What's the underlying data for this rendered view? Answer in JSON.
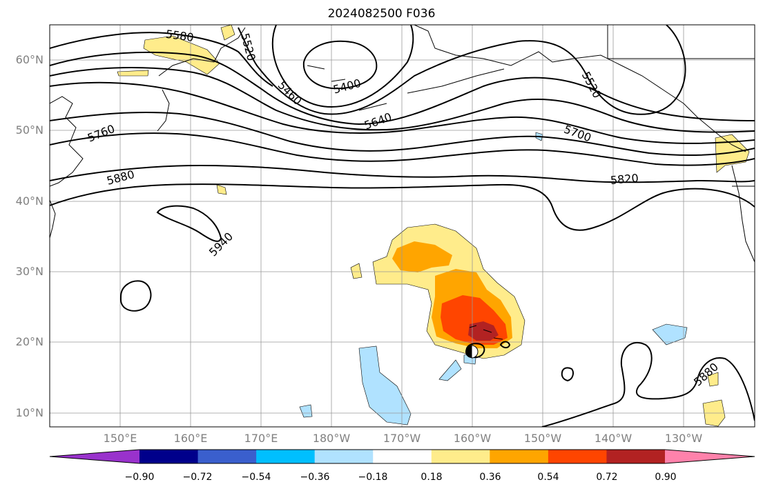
{
  "title": "2024082500 F036",
  "lat_labels": [
    "60°N",
    "50°N",
    "40°N",
    "30°N",
    "20°N",
    "10°N"
  ],
  "lon_labels": [
    "150°E",
    "160°E",
    "170°E",
    "180°W",
    "170°W",
    "160°W",
    "150°W",
    "140°W",
    "130°W"
  ],
  "contour_labels": [
    "5580",
    "5520",
    "5400",
    "5460",
    "5640",
    "5520",
    "5760",
    "5700",
    "5880",
    "5820",
    "5940",
    "5880"
  ],
  "colorbar": {
    "ticks": [
      "−0.90",
      "−0.72",
      "−0.54",
      "−0.36",
      "−0.18",
      "0.18",
      "0.36",
      "0.54",
      "0.72",
      "0.90"
    ],
    "colors": [
      "#9932cc",
      "#00008b",
      "#3a5fcd",
      "#00bfff",
      "#b0e2ff",
      "#ffffff",
      "#ffec8b",
      "#ffa500",
      "#ff4500",
      "#b22222",
      "#ff82ab"
    ]
  }
}
